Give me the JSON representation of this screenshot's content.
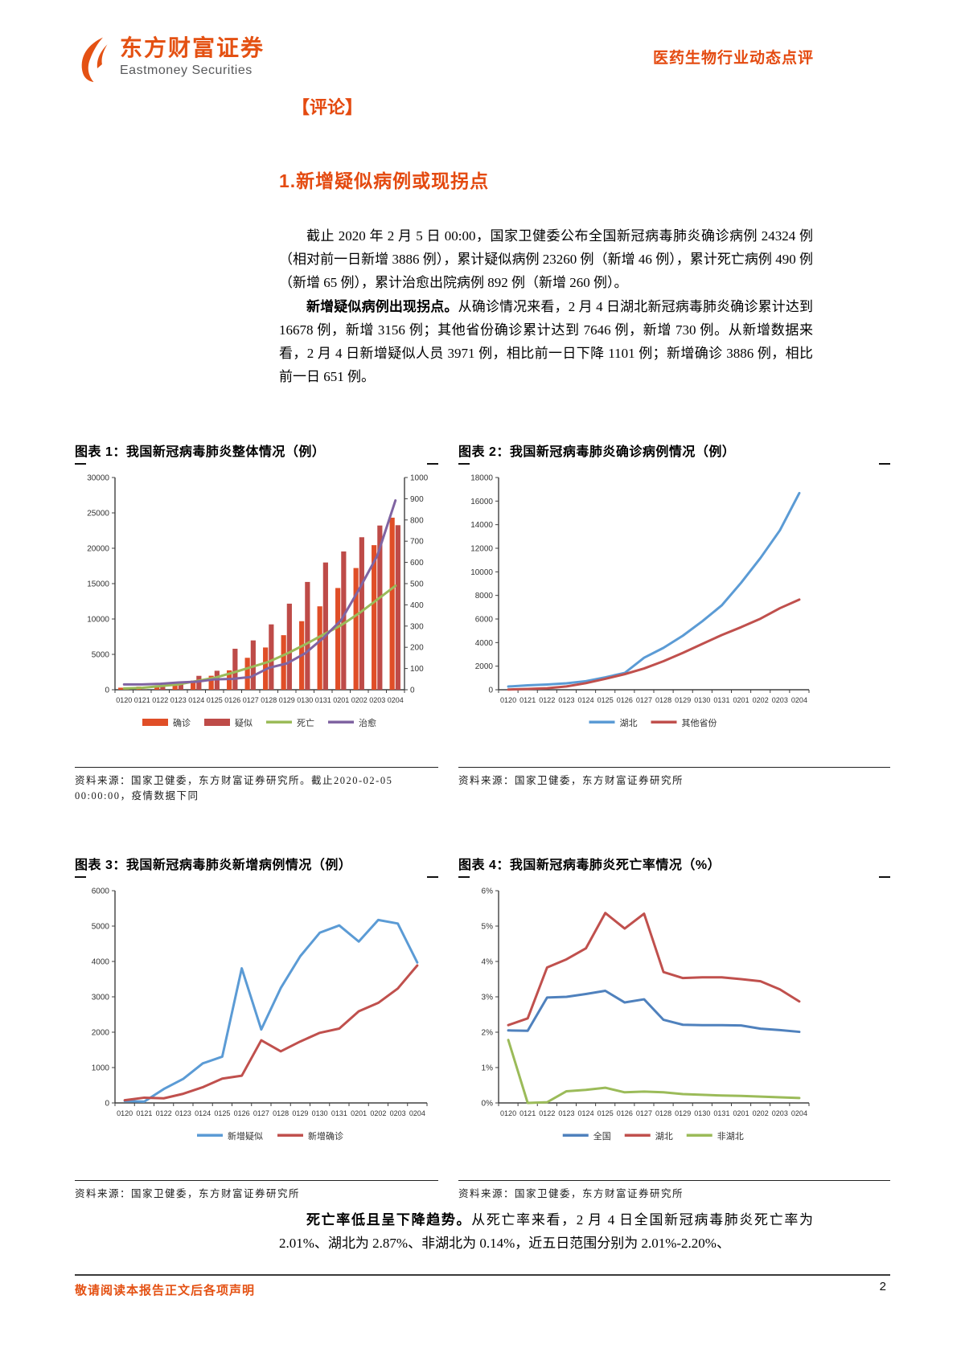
{
  "header": {
    "brand_cn": "东方财富证券",
    "brand_en": "Eastmoney Securities",
    "report_type": "医药生物行业动态点评"
  },
  "section": {
    "comment_tag": "【评论】",
    "heading": "1.新增疑似病例或现拐点",
    "para1": "截止 2020 年 2 月 5 日 00:00，国家卫健委公布全国新冠病毒肺炎确诊病例 24324 例（相对前一日新增 3886 例），累计疑似病例 23260 例（新增 46 例），累计死亡病例 490 例（新增 65 例），累计治愈出院病例 892 例（新增 260 例）。",
    "para2_lead": "新增疑似病例出现拐点。",
    "para2_rest": "从确诊情况来看，2 月 4 日湖北新冠病毒肺炎确诊累计达到 16678 例，新增 3156 例；其他省份确诊累计达到 7646 例，新增 730 例。从新增数据来看，2 月 4 日新增疑似人员 3971 例，相比前一日下降 1101 例；新增确诊 3886 例，相比前一日 651 例。",
    "para3_lead": "死亡率低且呈下降趋势。",
    "para3_rest": "从死亡率来看，2 月 4 日全国新冠病毒肺炎死亡率为 2.01%、湖北为 2.87%、非湖北为 0.14%，近五日范围分别为 2.01%-2.20%、"
  },
  "figures": [
    {
      "title": "图表 1：我国新冠病毒肺炎整体情况（例）",
      "source": "资料来源：国家卫健委，东方财富证券研究所。截止2020-02-05 00:00:00，疫情数据下同"
    },
    {
      "title": "图表 2：我国新冠病毒肺炎确诊病例情况（例）",
      "source": "资料来源：国家卫健委，东方财富证券研究所"
    },
    {
      "title": "图表 3：我国新冠病毒肺炎新增病例情况（例）",
      "source": "资料来源：国家卫健委，东方财富证券研究所"
    },
    {
      "title": "图表 4：我国新冠病毒肺炎死亡率情况（%）",
      "source": "资料来源：国家卫健委，东方财富证券研究所"
    }
  ],
  "footer": {
    "disclaimer": "敬请阅读本报告正文后各项声明",
    "page": "2"
  },
  "chart_data": [
    {
      "type": "bar",
      "title": "图表 1：我国新冠病毒肺炎整体情况（例）",
      "categories": [
        "0120",
        "0121",
        "0122",
        "0123",
        "0124",
        "0125",
        "0126",
        "0127",
        "0128",
        "0129",
        "0130",
        "0131",
        "0201",
        "0202",
        "0203",
        "0204"
      ],
      "series": [
        {
          "name": "确诊",
          "kind": "bar",
          "axis": "left",
          "color": "#e04e27",
          "values": [
            291,
            440,
            571,
            830,
            1287,
            1975,
            2744,
            4515,
            5974,
            7711,
            9692,
            11791,
            14380,
            17205,
            20438,
            24324
          ]
        },
        {
          "name": "疑似",
          "kind": "bar",
          "axis": "left",
          "color": "#be4b48",
          "values": [
            54,
            37,
            393,
            1072,
            1965,
            2684,
            5794,
            6973,
            9239,
            12167,
            15238,
            17988,
            19544,
            21558,
            23214,
            23260
          ]
        },
        {
          "name": "死亡",
          "kind": "line",
          "axis": "right",
          "color": "#9bbb59",
          "values": [
            6,
            9,
            17,
            25,
            41,
            56,
            80,
            106,
            132,
            170,
            213,
            259,
            304,
            361,
            425,
            490
          ]
        },
        {
          "name": "治愈",
          "kind": "line",
          "axis": "right",
          "color": "#8064a2",
          "values": [
            25,
            25,
            28,
            34,
            38,
            49,
            51,
            60,
            103,
            124,
            171,
            243,
            328,
            475,
            632,
            892
          ]
        }
      ],
      "left_axis": {
        "min": 0,
        "max": 30000,
        "step": 5000
      },
      "right_axis": {
        "min": 0,
        "max": 1000,
        "step": 100
      },
      "xlabel": "",
      "ylabel": "",
      "grid": false,
      "legend_position": "bottom"
    },
    {
      "type": "line",
      "title": "图表 2：我国新冠病毒肺炎确诊病例情况（例）",
      "categories": [
        "0120",
        "0121",
        "0122",
        "0123",
        "0124",
        "0125",
        "0126",
        "0127",
        "0128",
        "0129",
        "0130",
        "0131",
        "0201",
        "0202",
        "0203",
        "0204"
      ],
      "series": [
        {
          "name": "湖北",
          "kind": "line",
          "axis": "left",
          "color": "#5b9bd5",
          "values": [
            270,
            375,
            444,
            549,
            729,
            1052,
            1423,
            2714,
            3554,
            4586,
            5806,
            7153,
            9074,
            11177,
            13522,
            16678
          ]
        },
        {
          "name": "其他省份",
          "kind": "line",
          "axis": "left",
          "color": "#c0504d",
          "values": [
            21,
            65,
            127,
            281,
            558,
            923,
            1321,
            1801,
            2420,
            3125,
            3886,
            4638,
            5306,
            6028,
            6916,
            7646
          ]
        }
      ],
      "left_axis": {
        "min": 0,
        "max": 18000,
        "step": 2000
      },
      "xlabel": "",
      "ylabel": "",
      "grid": false,
      "legend_position": "bottom"
    },
    {
      "type": "line",
      "title": "图表 3：我国新冠病毒肺炎新增病例情况（例）",
      "categories": [
        "0120",
        "0121",
        "0122",
        "0123",
        "0124",
        "0125",
        "0126",
        "0127",
        "0128",
        "0129",
        "0130",
        "0131",
        "0201",
        "0202",
        "0203",
        "0204"
      ],
      "series": [
        {
          "name": "新增疑似",
          "kind": "line",
          "axis": "left",
          "color": "#5b9bd5",
          "values": [
            54,
            37,
            393,
            680,
            1118,
            1309,
            3806,
            2077,
            3248,
            4148,
            4812,
            5019,
            4562,
            5173,
            5072,
            3971
          ]
        },
        {
          "name": "新增确诊",
          "kind": "line",
          "axis": "left",
          "color": "#c0504d",
          "values": [
            77,
            149,
            131,
            259,
            444,
            688,
            769,
            1771,
            1459,
            1737,
            1982,
            2102,
            2590,
            2829,
            3235,
            3886
          ]
        }
      ],
      "left_axis": {
        "min": 0,
        "max": 6000,
        "step": 1000
      },
      "xlabel": "",
      "ylabel": "",
      "grid": false,
      "legend_position": "bottom"
    },
    {
      "type": "line",
      "title": "图表 4：我国新冠病毒肺炎死亡率情况（%）",
      "categories": [
        "0120",
        "0121",
        "0122",
        "0123",
        "0124",
        "0125",
        "0126",
        "0127",
        "0128",
        "0129",
        "0130",
        "0131",
        "0201",
        "0202",
        "0203",
        "0204"
      ],
      "series": [
        {
          "name": "全国",
          "kind": "line",
          "axis": "left",
          "color": "#4f81bd",
          "values": [
            2.05,
            2.04,
            2.98,
            3.0,
            3.08,
            3.17,
            2.84,
            2.93,
            2.35,
            2.21,
            2.2,
            2.2,
            2.19,
            2.1,
            2.06,
            2.01
          ]
        },
        {
          "name": "湖北",
          "kind": "line",
          "axis": "left",
          "color": "#c0504d",
          "values": [
            2.2,
            2.39,
            3.83,
            4.06,
            4.37,
            5.37,
            4.93,
            5.35,
            3.7,
            3.53,
            3.55,
            3.55,
            3.5,
            3.44,
            3.21,
            2.87
          ]
        },
        {
          "name": "非湖北",
          "kind": "line",
          "axis": "left",
          "color": "#9bbb59",
          "values": [
            1.78,
            0.0,
            0.02,
            0.33,
            0.37,
            0.43,
            0.3,
            0.32,
            0.3,
            0.25,
            0.23,
            0.21,
            0.2,
            0.18,
            0.16,
            0.14
          ]
        }
      ],
      "left_axis": {
        "min": 0,
        "max": 6,
        "step": 1,
        "percent": true
      },
      "xlabel": "",
      "ylabel": "",
      "grid": false,
      "legend_position": "bottom"
    }
  ]
}
